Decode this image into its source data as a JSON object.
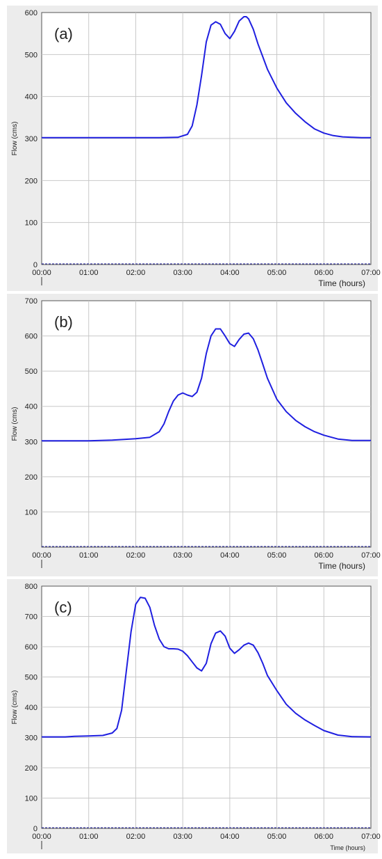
{
  "chart_data": [
    {
      "type": "line",
      "panel_label": "(a)",
      "ylabel": "Flow (cms)",
      "xlabel": "Time (hours)",
      "xticks": [
        "00:00",
        "01:00",
        "02:00",
        "03:00",
        "04:00",
        "05:00",
        "06:00",
        "07:00"
      ],
      "yticks": [
        0,
        100,
        200,
        300,
        400,
        500,
        600
      ],
      "ytick_labels": [
        "0",
        "100",
        "200",
        "300",
        "400",
        "500",
        "600"
      ],
      "xlim": [
        0,
        7
      ],
      "ylim": [
        0,
        600
      ],
      "grid": true,
      "series": [
        {
          "color": "#1f1fe0",
          "x": [
            0,
            0.5,
            1,
            1.5,
            2,
            2.5,
            2.9,
            3.1,
            3.2,
            3.3,
            3.4,
            3.5,
            3.6,
            3.7,
            3.8,
            3.9,
            4.0,
            4.1,
            4.2,
            4.3,
            4.35,
            4.4,
            4.5,
            4.6,
            4.7,
            4.8,
            5.0,
            5.2,
            5.4,
            5.6,
            5.8,
            6.0,
            6.2,
            6.4,
            6.6,
            6.8,
            7.0
          ],
          "y": [
            302,
            302,
            302,
            302,
            302,
            302,
            303,
            310,
            330,
            380,
            450,
            530,
            570,
            578,
            572,
            550,
            538,
            555,
            580,
            590,
            590,
            585,
            560,
            525,
            495,
            465,
            420,
            385,
            360,
            340,
            323,
            313,
            307,
            304,
            303,
            302,
            302
          ]
        }
      ]
    },
    {
      "type": "line",
      "panel_label": "(b)",
      "ylabel": "Flow (cms)",
      "xlabel": "Time (hours)",
      "xticks": [
        "00:00",
        "01:00",
        "02:00",
        "03:00",
        "04:00",
        "05:00",
        "06:00",
        "07:00"
      ],
      "yticks": [
        100,
        200,
        300,
        400,
        500,
        600,
        700
      ],
      "ytick_labels": [
        "100",
        "200",
        "300",
        "400",
        "500",
        "600",
        "700"
      ],
      "xlim": [
        0,
        7
      ],
      "ylim": [
        0,
        700
      ],
      "grid": true,
      "series": [
        {
          "color": "#1f1fe0",
          "x": [
            0,
            0.5,
            1,
            1.5,
            2,
            2.3,
            2.5,
            2.6,
            2.7,
            2.8,
            2.9,
            3.0,
            3.1,
            3.2,
            3.3,
            3.4,
            3.5,
            3.6,
            3.7,
            3.8,
            3.9,
            4.0,
            4.1,
            4.2,
            4.3,
            4.4,
            4.5,
            4.6,
            4.7,
            4.8,
            5.0,
            5.2,
            5.4,
            5.6,
            5.8,
            6.0,
            6.3,
            6.6,
            7.0
          ],
          "y": [
            302,
            302,
            302,
            304,
            308,
            312,
            328,
            350,
            385,
            415,
            432,
            438,
            432,
            428,
            440,
            480,
            550,
            600,
            620,
            620,
            600,
            578,
            570,
            590,
            605,
            608,
            592,
            560,
            520,
            480,
            420,
            385,
            360,
            342,
            328,
            318,
            307,
            303,
            303
          ]
        }
      ]
    },
    {
      "type": "line",
      "panel_label": "(c)",
      "ylabel": "Flow (cms)",
      "xlabel": "Time (hours)",
      "xticks": [
        "00:00",
        "01:00",
        "02:00",
        "03:00",
        "04:00",
        "05:00",
        "06:00",
        "07:00"
      ],
      "yticks": [
        0,
        100,
        200,
        300,
        400,
        500,
        600,
        700,
        800
      ],
      "ytick_labels": [
        "0",
        "100",
        "200",
        "300",
        "400",
        "500",
        "600",
        "700",
        "800"
      ],
      "xlim": [
        0,
        7
      ],
      "ylim": [
        0,
        800
      ],
      "grid": true,
      "series": [
        {
          "color": "#1f1fe0",
          "x": [
            0,
            0.5,
            0.7,
            1,
            1.3,
            1.5,
            1.6,
            1.7,
            1.8,
            1.9,
            2.0,
            2.1,
            2.2,
            2.3,
            2.4,
            2.5,
            2.6,
            2.7,
            2.8,
            2.9,
            3.0,
            3.1,
            3.2,
            3.3,
            3.4,
            3.5,
            3.6,
            3.7,
            3.8,
            3.9,
            4.0,
            4.1,
            4.2,
            4.3,
            4.4,
            4.5,
            4.6,
            4.7,
            4.8,
            5.0,
            5.2,
            5.4,
            5.6,
            5.8,
            6.0,
            6.3,
            6.6,
            7.0
          ],
          "y": [
            302,
            302,
            304,
            305,
            307,
            315,
            330,
            390,
            520,
            650,
            740,
            763,
            760,
            730,
            670,
            625,
            600,
            593,
            593,
            592,
            585,
            570,
            550,
            530,
            520,
            545,
            610,
            645,
            652,
            635,
            595,
            578,
            590,
            605,
            612,
            605,
            580,
            545,
            505,
            455,
            410,
            380,
            358,
            340,
            323,
            308,
            303,
            302
          ]
        }
      ]
    }
  ]
}
